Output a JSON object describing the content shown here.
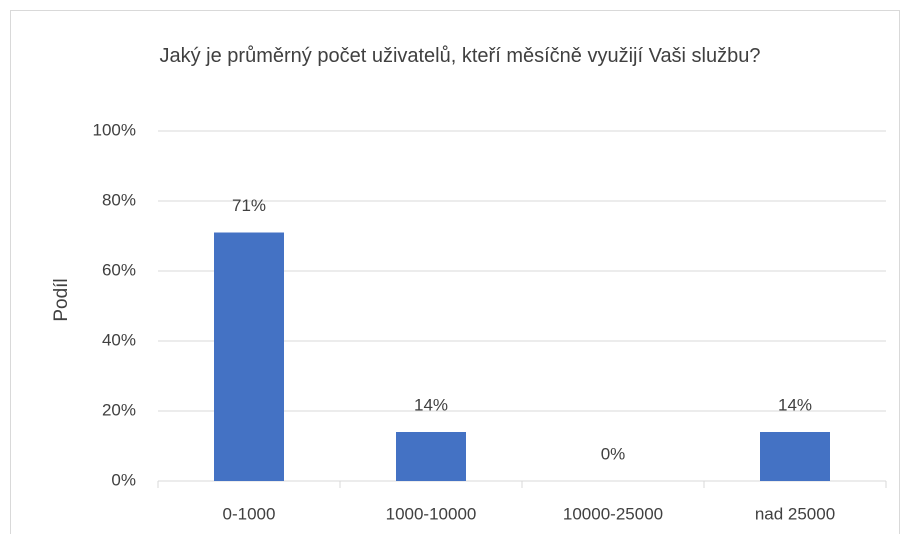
{
  "chart_data": {
    "type": "bar",
    "title": "Jaký je průměrný počet uživatelů, kteří měsíčně využijí Vaši službu?",
    "y_label": "Podíl",
    "categories": [
      "0-1000",
      "1000-10000",
      "10000-25000",
      "nad 25000"
    ],
    "values": [
      71,
      14,
      0,
      14
    ],
    "value_labels": [
      "71%",
      "14%",
      "0%",
      "14%"
    ],
    "color": "#4472c4",
    "ylim": [
      0,
      100
    ],
    "yticks": [
      {
        "value": 0,
        "label": "0%"
      },
      {
        "value": 20,
        "label": "20%"
      },
      {
        "value": 40,
        "label": "40%"
      },
      {
        "value": 60,
        "label": "60%"
      },
      {
        "value": 80,
        "label": "80%"
      },
      {
        "value": 100,
        "label": "100%"
      }
    ],
    "grid": true
  }
}
